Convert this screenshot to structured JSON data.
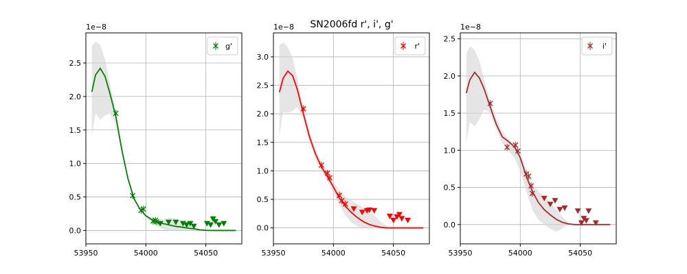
{
  "figure": {
    "title": "SN2006fd  r', i', g'",
    "band_color": "#d3d3d3"
  },
  "chart_data": [
    {
      "type": "line",
      "legend": "g'",
      "legend_placement": "top-right",
      "color": "#008000",
      "offset_label": "1e−8",
      "xlim": [
        53950,
        54080
      ],
      "ylim": [
        -0.2,
        2.95
      ],
      "xticks": [
        53950,
        54000,
        54050
      ],
      "yticks": [
        0.0,
        0.5,
        1.0,
        1.5,
        2.0,
        2.5
      ],
      "grid": true,
      "model": {
        "x": [
          53955,
          53958,
          53962,
          53966,
          53970,
          53975,
          53980,
          53985,
          53990,
          53995,
          54000,
          54005,
          54010,
          54015,
          54020,
          54025,
          54030,
          54035,
          54040,
          54045,
          54050,
          54055,
          54060,
          54065,
          54070,
          54075
        ],
        "y": [
          2.07,
          2.32,
          2.42,
          2.3,
          2.05,
          1.7,
          1.2,
          0.78,
          0.48,
          0.32,
          0.22,
          0.16,
          0.12,
          0.1,
          0.08,
          0.06,
          0.05,
          0.035,
          0.025,
          0.01,
          0.003,
          0.0,
          0.0,
          0.0,
          0.0,
          0.0
        ]
      },
      "band": {
        "x": [
          53955,
          53958,
          53962,
          53966,
          53970,
          53975,
          53980,
          53985,
          53990,
          53995,
          54000,
          54005,
          54010,
          54015,
          54020,
          54025,
          54030,
          54035,
          54040,
          54045
        ],
        "upper": [
          2.75,
          2.82,
          2.77,
          2.55,
          2.2,
          1.75,
          1.25,
          0.8,
          0.5,
          0.33,
          0.23,
          0.18,
          0.16,
          0.17,
          0.19,
          0.18,
          0.14,
          0.1,
          0.05,
          0.02
        ],
        "lower": [
          1.4,
          1.75,
          1.65,
          1.72,
          1.75,
          1.6,
          1.15,
          0.75,
          0.46,
          0.3,
          0.2,
          0.12,
          0.06,
          0.01,
          0.0,
          0.0,
          0.0,
          0.0,
          0.0,
          0.01
        ]
      },
      "detections": {
        "x": [
          53975,
          53989,
          53996,
          53998,
          54006,
          54008,
          54009
        ],
        "y": [
          1.75,
          0.52,
          0.3,
          0.32,
          0.14,
          0.15,
          0.13
        ]
      },
      "upper_limits": {
        "x": [
          54012,
          54019,
          54025,
          54031,
          54034,
          54037,
          54040,
          54051,
          54054,
          54056,
          54058,
          54061,
          54065
        ],
        "y": [
          0.1,
          0.12,
          0.12,
          0.1,
          0.08,
          0.1,
          0.06,
          0.1,
          0.08,
          0.17,
          0.13,
          0.08,
          0.1
        ]
      }
    },
    {
      "type": "line",
      "legend": "r'",
      "legend_placement": "top-right",
      "color": "#ff0000",
      "offset_label": "1e−8",
      "xlim": [
        53950,
        54080
      ],
      "ylim": [
        -0.28,
        3.42
      ],
      "xticks": [
        53950,
        54000,
        54050
      ],
      "yticks": [
        0.0,
        0.5,
        1.0,
        1.5,
        2.0,
        2.5,
        3.0
      ],
      "grid": true,
      "model": {
        "x": [
          53955,
          53958,
          53962,
          53966,
          53970,
          53975,
          53980,
          53985,
          53990,
          53995,
          54000,
          54005,
          54010,
          54015,
          54020,
          54025,
          54030,
          54035,
          54040,
          54045,
          54050,
          54055,
          54060,
          54065,
          54070,
          54075
        ],
        "y": [
          2.38,
          2.62,
          2.75,
          2.67,
          2.42,
          2.0,
          1.6,
          1.3,
          1.07,
          0.9,
          0.72,
          0.52,
          0.38,
          0.27,
          0.18,
          0.11,
          0.06,
          0.03,
          0.01,
          0.0,
          0.0,
          0.0,
          0.0,
          0.0,
          0.0,
          0.0
        ]
      },
      "band": {
        "x": [
          53955,
          53958,
          53962,
          53966,
          53970,
          53975,
          53980,
          53985,
          53990,
          53995,
          54000,
          54005,
          54010,
          54015,
          54020,
          54025,
          54030,
          54035,
          54040,
          54045
        ],
        "upper": [
          3.2,
          3.25,
          3.17,
          2.98,
          2.62,
          2.1,
          1.68,
          1.38,
          1.14,
          0.98,
          0.8,
          0.65,
          0.55,
          0.48,
          0.42,
          0.36,
          0.28,
          0.2,
          0.1,
          0.03
        ],
        "lower": [
          1.58,
          2.03,
          2.02,
          2.05,
          2.12,
          1.92,
          1.52,
          1.22,
          1.0,
          0.82,
          0.62,
          0.4,
          0.22,
          0.1,
          0.03,
          0.0,
          0.0,
          0.0,
          0.0,
          0.0
        ]
      },
      "detections": {
        "x": [
          53975,
          53990,
          53995,
          53997,
          54005,
          54007,
          54010
        ],
        "y": [
          2.09,
          1.1,
          0.96,
          0.88,
          0.57,
          0.48,
          0.42
        ]
      },
      "upper_limits": {
        "x": [
          54017,
          54024,
          54028,
          54030,
          54034,
          54047,
          54050,
          54053,
          54055,
          54057,
          54062
        ],
        "y": [
          0.33,
          0.27,
          0.3,
          0.31,
          0.3,
          0.2,
          0.13,
          0.19,
          0.23,
          0.16,
          0.13
        ]
      }
    },
    {
      "type": "line",
      "legend": "i'",
      "legend_placement": "top-right",
      "color": "#a52a2a",
      "offset_label": "1e−8",
      "xlim": [
        53950,
        54080
      ],
      "ylim": [
        -0.26,
        2.58
      ],
      "xticks": [
        53950,
        54000,
        54050
      ],
      "yticks": [
        0.0,
        0.5,
        1.0,
        1.5,
        2.0,
        2.5
      ],
      "grid": true,
      "model": {
        "x": [
          53955,
          53958,
          53962,
          53966,
          53970,
          53975,
          53980,
          53985,
          53990,
          53995,
          54000,
          54005,
          54010,
          54015,
          54020,
          54025,
          54030,
          54035,
          54040,
          54045,
          54050,
          54055,
          54060,
          54065,
          54070,
          54075
        ],
        "y": [
          1.77,
          1.95,
          2.05,
          1.97,
          1.82,
          1.58,
          1.35,
          1.18,
          1.12,
          1.05,
          0.9,
          0.65,
          0.45,
          0.3,
          0.2,
          0.13,
          0.07,
          0.03,
          0.01,
          0.0,
          0.0,
          0.0,
          0.0,
          0.0,
          0.0,
          0.0
        ]
      },
      "band": {
        "x": [
          53955,
          53958,
          53962,
          53966,
          53970,
          53975,
          53980,
          53985,
          53990,
          53995,
          54000,
          54005,
          54010,
          54015,
          54020,
          54025,
          54030,
          54035,
          54040
        ],
        "upper": [
          2.3,
          2.4,
          2.35,
          2.2,
          1.95,
          1.65,
          1.42,
          1.25,
          1.15,
          1.08,
          0.95,
          0.75,
          0.55,
          0.45,
          0.38,
          0.3,
          0.2,
          0.1,
          0.03
        ],
        "lower": [
          1.1,
          1.38,
          1.32,
          1.42,
          1.55,
          1.5,
          1.28,
          1.1,
          1.0,
          0.9,
          0.72,
          0.45,
          0.2,
          0.07,
          0.0,
          -0.06,
          -0.1,
          -0.05,
          0.0
        ]
      },
      "detections": {
        "x": [
          53975,
          53989,
          53996,
          53998,
          54005,
          54007,
          54009,
          54010
        ],
        "y": [
          1.63,
          1.04,
          1.07,
          0.99,
          0.68,
          0.65,
          0.52,
          0.42
        ]
      },
      "upper_limits": {
        "x": [
          54020,
          54025,
          54029,
          54033,
          54037,
          54048,
          54051,
          54053,
          54055,
          54057,
          54063
        ],
        "y": [
          0.35,
          0.27,
          0.32,
          0.2,
          0.22,
          0.18,
          0.02,
          0.08,
          0.05,
          0.18,
          0.02
        ]
      }
    }
  ]
}
